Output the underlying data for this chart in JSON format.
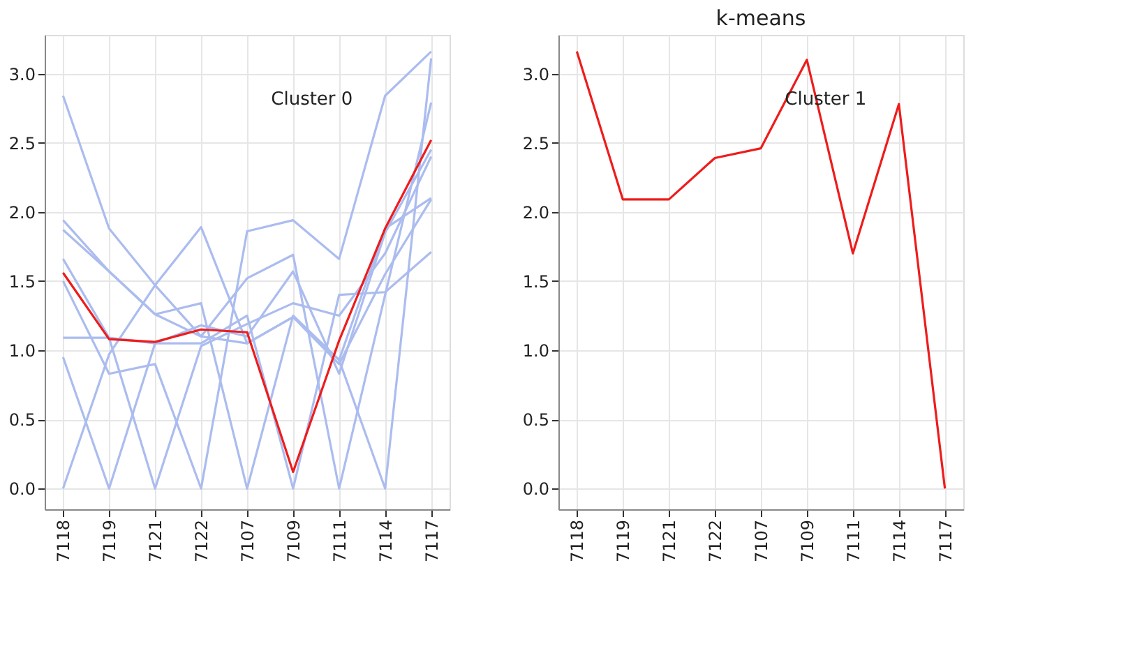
{
  "chart_data": [
    {
      "type": "line",
      "categories": [
        "7118",
        "7119",
        "7121",
        "7122",
        "7107",
        "7109",
        "7111",
        "7114",
        "7117"
      ],
      "ylim": [
        -0.15,
        3.28
      ],
      "yticks": [
        {
          "value": 0,
          "label": "0.0"
        },
        0.5,
        {
          "value": 1,
          "label": "1.0"
        },
        1.5,
        {
          "value": 2,
          "label": "2.0"
        },
        2.5,
        {
          "value": 3,
          "label": "3.0"
        }
      ],
      "grid": true,
      "annotations": [
        "Cluster 0"
      ],
      "series": [
        {
          "color": "#abbcef",
          "values": [
            0,
            0.97,
            1.47,
            1.1,
            1.05,
            1.24,
            0.9,
            1.55,
            2.09
          ]
        },
        {
          "color": "#abbcef",
          "values": [
            0.95,
            0,
            1.05,
            1.18,
            1.1,
            1.57,
            0.83,
            1.85,
            2.45
          ]
        },
        {
          "color": "#abbcef",
          "values": [
            1.66,
            1.09,
            0,
            1.03,
            1.19,
            1.34,
            1.25,
            1.7,
            2.4
          ]
        },
        {
          "color": "#abbcef",
          "values": [
            1.5,
            0.83,
            0.9,
            0,
            1.86,
            1.94,
            1.66,
            2.84,
            3.16
          ]
        },
        {
          "color": "#abbcef",
          "values": [
            1.87,
            1.57,
            1.26,
            1.34,
            0,
            1.25,
            0.93,
            1.88,
            2.1
          ]
        },
        {
          "color": "#abbcef",
          "values": [
            1.09,
            1.09,
            1.05,
            1.05,
            1.25,
            0,
            1.4,
            1.42,
            1.71
          ]
        },
        {
          "color": "#abbcef",
          "values": [
            1.94,
            1.57,
            1.26,
            1.1,
            1.52,
            1.69,
            0,
            1.4,
            2.79
          ]
        },
        {
          "color": "#abbcef",
          "values": [
            2.84,
            1.88,
            1.47,
            1.89,
            1.05,
            1.24,
            0.93,
            0,
            3.11
          ]
        },
        {
          "color": "#ee1c1c",
          "values": [
            1.56,
            1.08,
            1.06,
            1.15,
            1.13,
            0.12,
            1.07,
            1.88,
            2.52
          ]
        }
      ]
    },
    {
      "type": "line",
      "title": "k-means",
      "categories": [
        "7118",
        "7119",
        "7121",
        "7122",
        "7107",
        "7109",
        "7111",
        "7114",
        "7117"
      ],
      "ylim": [
        -0.15,
        3.28
      ],
      "yticks": [
        {
          "value": 0,
          "label": "0.0"
        },
        0.5,
        {
          "value": 1,
          "label": "1.0"
        },
        1.5,
        {
          "value": 2,
          "label": "2.0"
        },
        2.5,
        {
          "value": 3,
          "label": "3.0"
        }
      ],
      "grid": true,
      "annotations": [
        "Cluster 1"
      ],
      "series": [
        {
          "color": "#ee1c1c",
          "values": [
            3.16,
            2.09,
            2.09,
            2.39,
            2.46,
            3.1,
            1.7,
            2.78,
            0.0
          ]
        }
      ]
    }
  ]
}
